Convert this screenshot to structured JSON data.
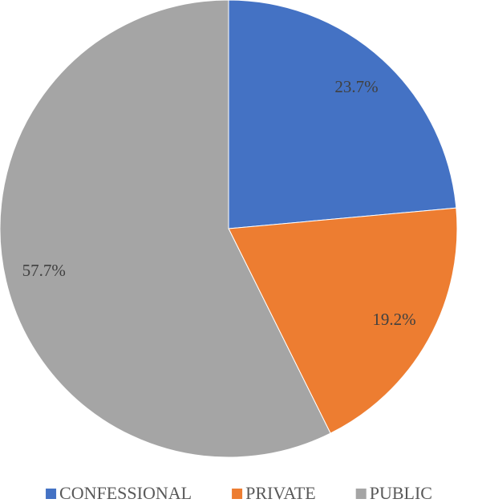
{
  "chart_data": {
    "type": "pie",
    "categories": [
      "CONFESSIONAL",
      "PRIVATE",
      "PUBLIC"
    ],
    "values": [
      23.7,
      19.2,
      57.7
    ],
    "value_labels": [
      "23.7%",
      "19.2%",
      "57.7%"
    ],
    "colors": [
      "#4472c4",
      "#ed7d31",
      "#a5a5a5"
    ],
    "legend": "bottom"
  }
}
